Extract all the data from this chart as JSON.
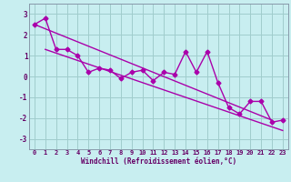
{
  "xlabel": "Windchill (Refroidissement éolien,°C)",
  "x_values": [
    0,
    1,
    2,
    3,
    4,
    5,
    6,
    7,
    8,
    9,
    10,
    11,
    12,
    13,
    14,
    15,
    16,
    17,
    18,
    19,
    20,
    21,
    22,
    23
  ],
  "y_data": [
    2.5,
    2.8,
    1.3,
    1.3,
    1.0,
    0.2,
    0.4,
    0.3,
    -0.1,
    0.2,
    0.3,
    -0.2,
    0.2,
    0.1,
    1.2,
    0.2,
    1.2,
    -0.3,
    -1.5,
    -1.8,
    -1.2,
    -1.2,
    -2.2,
    -2.1
  ],
  "trend1_x": [
    0,
    22
  ],
  "trend1_y": [
    2.5,
    -2.1
  ],
  "trend2_x": [
    1,
    23
  ],
  "trend2_y": [
    1.3,
    -2.6
  ],
  "ylim": [
    -3.5,
    3.5
  ],
  "xlim": [
    -0.5,
    23.5
  ],
  "yticks": [
    -3,
    -2,
    -1,
    0,
    1,
    2,
    3
  ],
  "bg_color": "#c8eef0",
  "grid_color": "#a0cccc",
  "line_color": "#aa00aa",
  "marker": "D",
  "marker_size": 2.5,
  "line_width": 1.0,
  "tick_fontsize": 5.0,
  "xlabel_fontsize": 5.5
}
